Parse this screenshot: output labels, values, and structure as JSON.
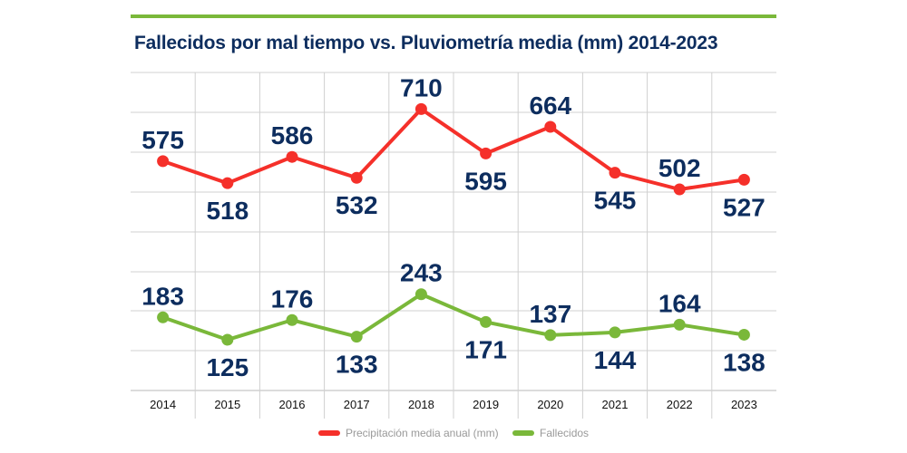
{
  "chart_data": {
    "type": "line",
    "title": "Fallecidos por mal tiempo vs. Pluviometría media (mm) 2014-2023",
    "categories": [
      "2014",
      "2015",
      "2016",
      "2017",
      "2018",
      "2019",
      "2020",
      "2021",
      "2022",
      "2023"
    ],
    "series": [
      {
        "name": "Precipitación media anual (mm)",
        "color": "#f5302a",
        "values": [
          575,
          518,
          586,
          532,
          710,
          595,
          664,
          545,
          502,
          527
        ]
      },
      {
        "name": "Fallecidos",
        "color": "#7ab83a",
        "values": [
          183,
          125,
          176,
          133,
          243,
          171,
          137,
          144,
          164,
          138
        ]
      }
    ],
    "grid": true,
    "y_axis_labels_shown": false,
    "legend": "bottom-center",
    "accent_color": "#7ab83a",
    "label_color": "#0d2d5e"
  }
}
